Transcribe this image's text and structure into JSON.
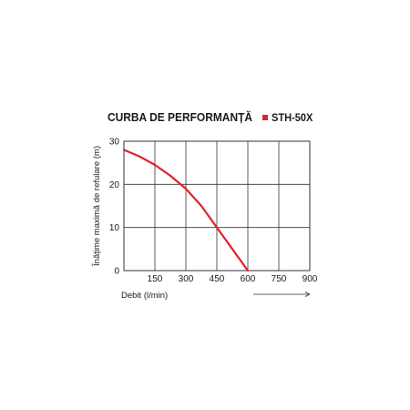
{
  "chart_data": {
    "type": "line",
    "title": "CURBA DE PERFORMANȚĂ",
    "xlabel": "Debit (l/min)",
    "ylabel": "Înățime maximă de refulare (m)",
    "xlim": [
      0,
      900
    ],
    "ylim": [
      0,
      30
    ],
    "xticks": [
      "150",
      "300",
      "450",
      "600",
      "750",
      "900"
    ],
    "yticks": [
      "0",
      "10",
      "20",
      "30"
    ],
    "x_tick_values": [
      150,
      300,
      450,
      600,
      750,
      900
    ],
    "y_tick_values": [
      0,
      10,
      20,
      30
    ],
    "grid": true,
    "legend_position": "top-right",
    "series": [
      {
        "name": "STH-50X",
        "color": "#e0222e",
        "x": [
          0,
          75,
          150,
          225,
          300,
          375,
          450,
          525,
          600
        ],
        "y": [
          28,
          26.5,
          24.5,
          22,
          19,
          15,
          10,
          5,
          0
        ]
      }
    ],
    "annotation": "arrow-right"
  }
}
